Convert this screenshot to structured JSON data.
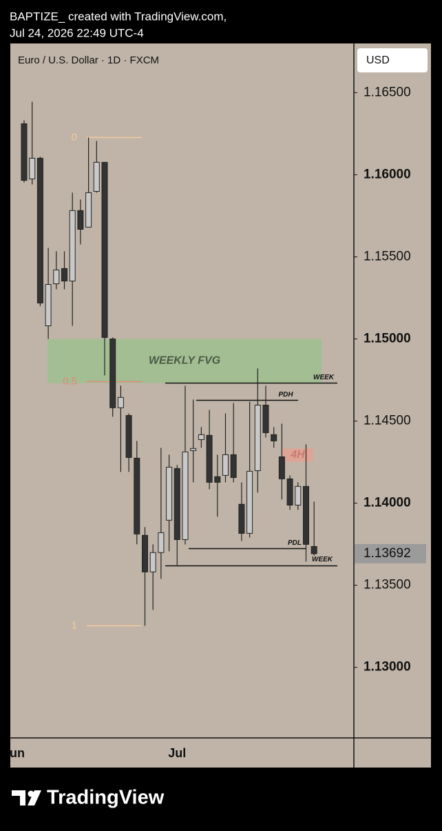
{
  "header": {
    "line1": "BAPTIZE_ created with TradingView.com,",
    "line2": "Jul 24, 2026 22:49 UTC-4"
  },
  "footer": {
    "brand": "TradingView"
  },
  "chart_data": {
    "type": "candlestick",
    "title": "Euro / U.S. Dollar · 1D · FXCM",
    "currency": "USD",
    "first_x_label": "Jun",
    "categories": [
      null,
      null,
      null,
      null,
      null,
      null,
      null,
      null,
      null,
      null,
      null,
      null,
      null,
      null,
      null,
      null,
      null,
      null,
      null,
      "Jul",
      null,
      null,
      null,
      null,
      null,
      null,
      null,
      null,
      null,
      null,
      null,
      null,
      null,
      null,
      null,
      null,
      null
    ],
    "open": [
      1.16311,
      1.15975,
      1.16101,
      1.1508,
      1.15336,
      1.15429,
      1.15353,
      1.15782,
      1.15681,
      1.15899,
      1.16076,
      1.15,
      1.14581,
      1.14534,
      1.14274,
      1.13804,
      1.13581,
      1.13699,
      1.13896,
      1.14211,
      1.13778,
      1.1432,
      1.14387,
      1.14413,
      1.14161,
      1.14169,
      1.14295,
      1.13993,
      1.13816,
      1.14198,
      1.14597,
      1.14417,
      1.14282,
      1.14148,
      1.13988,
      1.14102,
      1.13736
    ],
    "high": [
      1.16332,
      1.16445,
      1.1611,
      1.15555,
      1.15534,
      1.15534,
      1.15891,
      1.15849,
      1.16227,
      1.16206,
      1.16076,
      1.15009,
      1.14715,
      1.14547,
      1.14379,
      1.13854,
      1.13749,
      1.14337,
      1.14295,
      1.14232,
      1.14715,
      1.14631,
      1.14463,
      1.14568,
      1.14295,
      1.14547,
      1.1461,
      1.14127,
      1.14618,
      1.1482,
      1.14715,
      1.14463,
      1.14484,
      1.14169,
      1.14127,
      1.14358,
      1.14009
    ],
    "low": [
      1.15954,
      1.15941,
      1.152,
      1.15,
      1.15303,
      1.15303,
      1.1508,
      1.15576,
      1.15681,
      1.15891,
      1.14778,
      1.14526,
      1.1419,
      1.1419,
      1.13749,
      1.13253,
      1.1335,
      1.13539,
      1.13707,
      1.13623,
      1.13749,
      1.14127,
      1.14337,
      1.14085,
      1.13917,
      1.14127,
      1.14127,
      1.1377,
      1.13791,
      1.14064,
      1.144,
      1.14337,
      1.14022,
      1.13959,
      1.13959,
      1.13644,
      1.1368
    ],
    "close": [
      1.15966,
      1.16101,
      1.15219,
      1.15332,
      1.1542,
      1.15353,
      1.15782,
      1.15668,
      1.15891,
      1.16076,
      1.15009,
      1.14581,
      1.14644,
      1.14278,
      1.13812,
      1.13581,
      1.13699,
      1.1382,
      1.14219,
      1.13778,
      1.14312,
      1.14333,
      1.14417,
      1.14127,
      1.14127,
      1.14295,
      1.14156,
      1.13816,
      1.14194,
      1.14597,
      1.14429,
      1.14379,
      1.14148,
      1.13988,
      1.14102,
      1.13749,
      1.13692
    ],
    "up_color": "#c9c9c9",
    "down_color": "#333333",
    "ylim": [
      1.1257,
      1.168
    ],
    "yticks": [
      {
        "value": 1.165,
        "label": "1.16500"
      },
      {
        "value": 1.16,
        "label": "1.16000"
      },
      {
        "value": 1.155,
        "label": "1.15500"
      },
      {
        "value": 1.15,
        "label": "1.15000"
      },
      {
        "value": 1.145,
        "label": "1.14500"
      },
      {
        "value": 1.14,
        "label": "1.14000"
      },
      {
        "value": 1.135,
        "label": "1.13500"
      },
      {
        "value": 1.13,
        "label": "1.13000"
      }
    ],
    "last_price": 1.13692,
    "fib": {
      "high": 1.16227,
      "low": 1.13253,
      "levels": [
        0,
        0.5,
        1
      ]
    },
    "zones": [
      {
        "label": "WEEKLY FVG",
        "top": 1.15,
        "bottom": 1.14731,
        "color": "#9fbf8f"
      },
      {
        "label": "4H",
        "top": 1.14333,
        "bottom": 1.14252,
        "color": "#e8a090"
      }
    ],
    "levels": [
      {
        "label": "WEEK",
        "value": 1.14731
      },
      {
        "label": "PDH",
        "value": 1.14626
      },
      {
        "label": "PDL",
        "value": 1.13723
      },
      {
        "label": "WEEK",
        "value": 1.13618
      }
    ]
  }
}
